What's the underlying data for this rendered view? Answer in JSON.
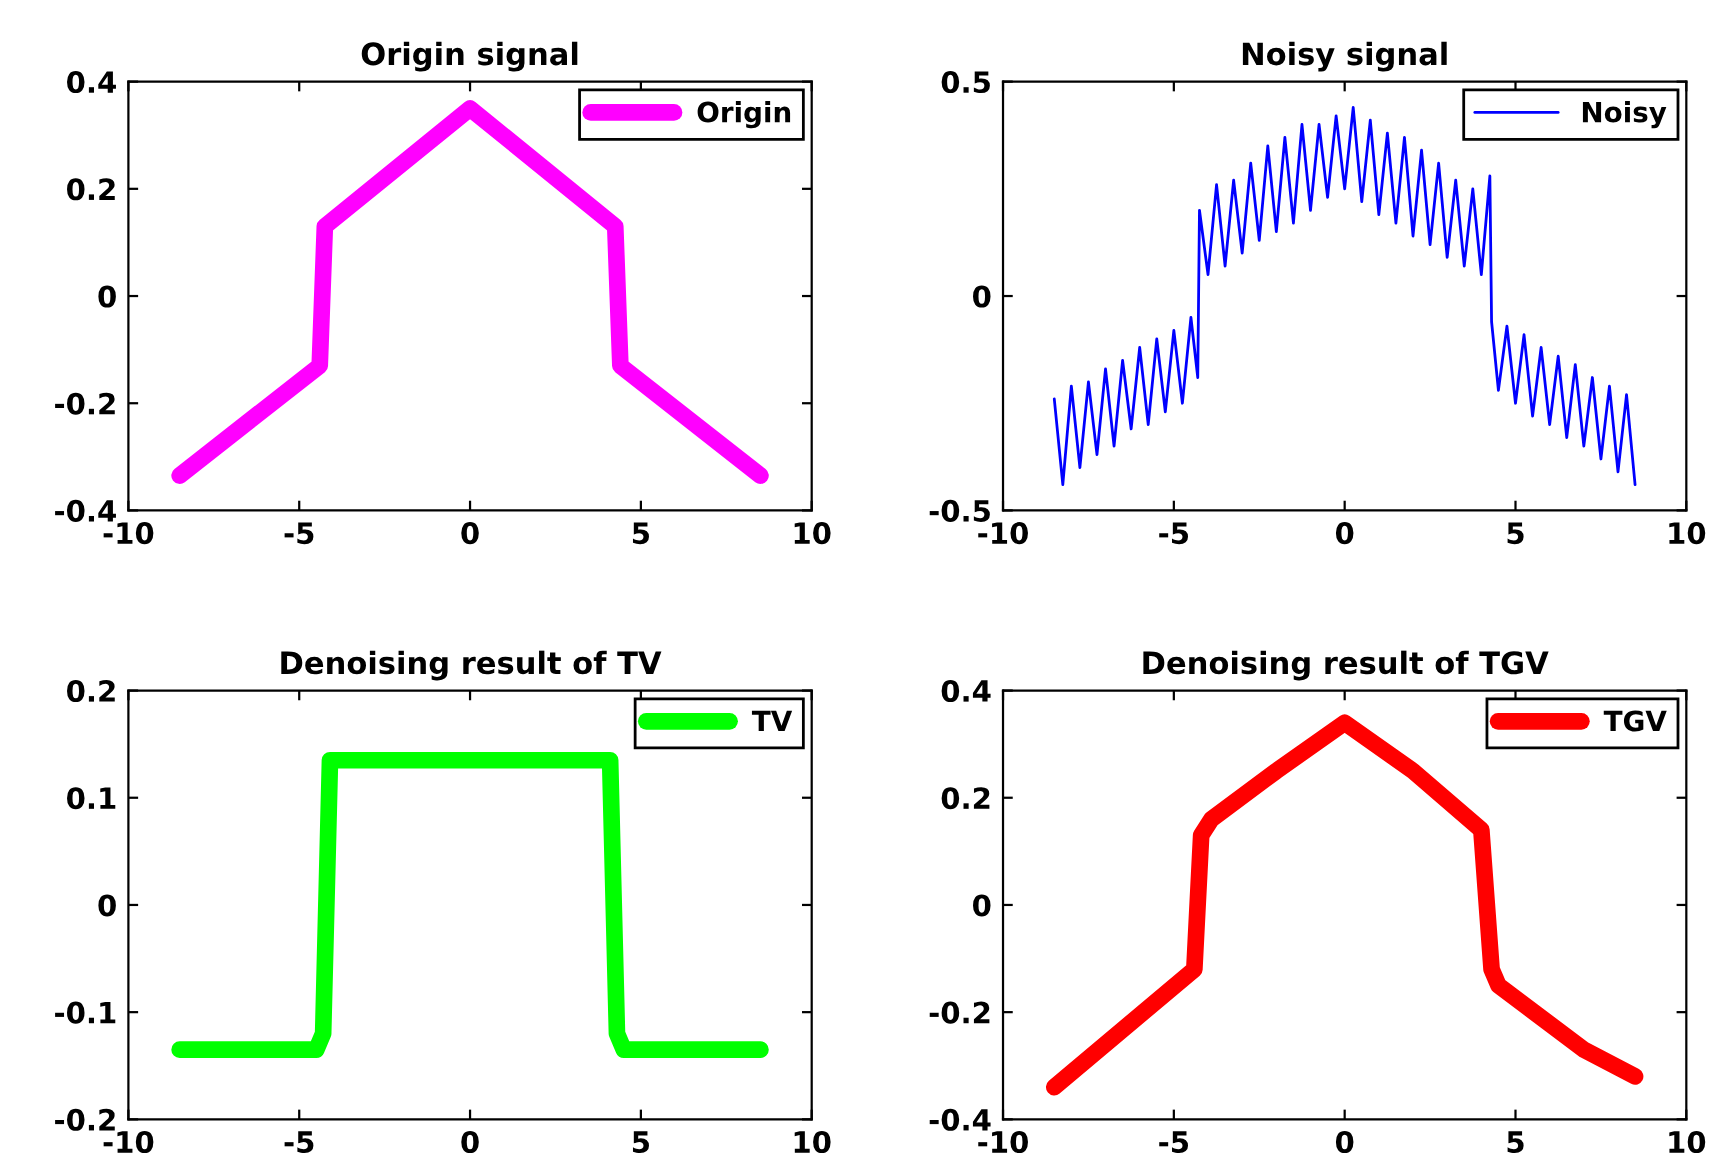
{
  "chart_data": [
    {
      "type": "line",
      "title": "Origin signal",
      "xlim": [
        -10,
        10
      ],
      "xticks": [
        -10,
        -5,
        0,
        5,
        10
      ],
      "ylim": [
        -0.4,
        0.4
      ],
      "yticks": [
        -0.4,
        -0.2,
        0,
        0.2,
        0.4
      ],
      "legend": "top right",
      "grid": false,
      "series": [
        {
          "name": "Origin",
          "color": "#ff00ff",
          "x": [
            -8.5,
            -4.4,
            -4.25,
            0,
            4.25,
            4.4,
            8.5
          ],
          "values": [
            -0.335,
            -0.13,
            0.13,
            0.35,
            0.13,
            -0.13,
            -0.335
          ]
        }
      ]
    },
    {
      "type": "line",
      "title": "Noisy signal",
      "xlim": [
        -10,
        10
      ],
      "xticks": [
        -10,
        -5,
        0,
        5,
        10
      ],
      "ylim": [
        -0.5,
        0.5
      ],
      "yticks": [
        -0.5,
        0,
        0.5
      ],
      "legend": "top right",
      "grid": false,
      "series": [
        {
          "name": "Noisy",
          "color": "#0000ff",
          "x": [
            -8.5,
            -8.25,
            -8.0,
            -7.75,
            -7.5,
            -7.25,
            -7.0,
            -6.75,
            -6.5,
            -6.25,
            -6.0,
            -5.75,
            -5.5,
            -5.25,
            -5.0,
            -4.75,
            -4.5,
            -4.3,
            -4.25,
            -4.0,
            -3.75,
            -3.5,
            -3.25,
            -3.0,
            -2.75,
            -2.5,
            -2.25,
            -2.0,
            -1.75,
            -1.5,
            -1.25,
            -1.0,
            -0.75,
            -0.5,
            -0.25,
            0.0,
            0.25,
            0.5,
            0.75,
            1.0,
            1.25,
            1.5,
            1.75,
            2.0,
            2.25,
            2.5,
            2.75,
            3.0,
            3.25,
            3.5,
            3.75,
            4.0,
            4.25,
            4.3,
            4.5,
            4.75,
            5.0,
            5.25,
            5.5,
            5.75,
            6.0,
            6.25,
            6.5,
            6.75,
            7.0,
            7.25,
            7.5,
            7.75,
            8.0,
            8.25,
            8.5
          ],
          "values": [
            -0.24,
            -0.44,
            -0.21,
            -0.4,
            -0.2,
            -0.37,
            -0.17,
            -0.35,
            -0.15,
            -0.31,
            -0.12,
            -0.3,
            -0.1,
            -0.27,
            -0.08,
            -0.25,
            -0.05,
            -0.19,
            0.2,
            0.05,
            0.26,
            0.07,
            0.27,
            0.1,
            0.31,
            0.13,
            0.35,
            0.15,
            0.37,
            0.17,
            0.4,
            0.2,
            0.4,
            0.23,
            0.42,
            0.25,
            0.44,
            0.22,
            0.41,
            0.19,
            0.38,
            0.17,
            0.37,
            0.14,
            0.34,
            0.12,
            0.31,
            0.09,
            0.27,
            0.07,
            0.25,
            0.05,
            0.28,
            -0.06,
            -0.22,
            -0.07,
            -0.25,
            -0.09,
            -0.28,
            -0.12,
            -0.3,
            -0.14,
            -0.33,
            -0.16,
            -0.35,
            -0.19,
            -0.38,
            -0.21,
            -0.41,
            -0.23,
            -0.44
          ]
        }
      ]
    },
    {
      "type": "line",
      "title": "Denoising result of TV",
      "xlim": [
        -10,
        10
      ],
      "xticks": [
        -10,
        -5,
        0,
        5,
        10
      ],
      "ylim": [
        -0.2,
        0.2
      ],
      "yticks": [
        -0.2,
        -0.1,
        0,
        0.1,
        0.2
      ],
      "legend": "top right",
      "grid": false,
      "series": [
        {
          "name": "TV",
          "color": "#00ff00",
          "x": [
            -8.5,
            -4.5,
            -4.3,
            -4.1,
            4.1,
            4.3,
            4.5,
            8.5
          ],
          "values": [
            -0.135,
            -0.135,
            -0.12,
            0.135,
            0.135,
            -0.12,
            -0.135,
            -0.135
          ]
        }
      ]
    },
    {
      "type": "line",
      "title": "Denoising result of TGV",
      "xlim": [
        -10,
        10
      ],
      "xticks": [
        -10,
        -5,
        0,
        5,
        10
      ],
      "ylim": [
        -0.4,
        0.4
      ],
      "yticks": [
        -0.4,
        -0.2,
        0,
        0.2,
        0.4
      ],
      "legend": "top right",
      "grid": false,
      "series": [
        {
          "name": "TGV",
          "color": "#ff0000",
          "x": [
            -8.5,
            -4.4,
            -4.2,
            -3.9,
            -2,
            0,
            2,
            4.0,
            4.3,
            4.5,
            7,
            8.5
          ],
          "values": [
            -0.34,
            -0.12,
            0.13,
            0.16,
            0.25,
            0.34,
            0.25,
            0.14,
            -0.12,
            -0.15,
            -0.27,
            -0.32
          ]
        }
      ]
    }
  ]
}
